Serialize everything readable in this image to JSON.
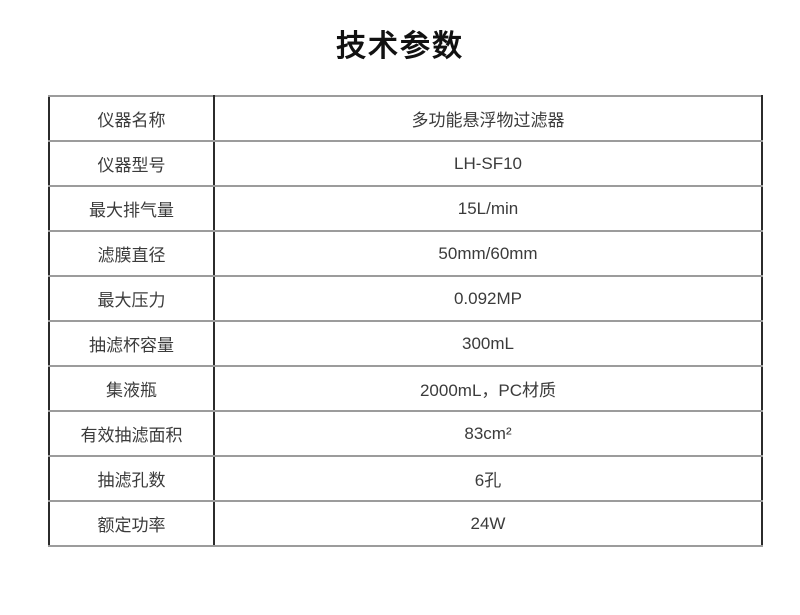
{
  "page": {
    "title": "技术参数"
  },
  "table": {
    "rows": [
      {
        "label": "仪器名称",
        "value": "多功能悬浮物过滤器"
      },
      {
        "label": "仪器型号",
        "value": "LH-SF10"
      },
      {
        "label": "最大排气量",
        "value": "15L/min"
      },
      {
        "label": "滤膜直径",
        "value": "50mm/60mm"
      },
      {
        "label": "最大压力",
        "value": "0.092MP"
      },
      {
        "label": "抽滤杯容量",
        "value": "300mL"
      },
      {
        "label": "集液瓶",
        "value": "2000mL，PC材质"
      },
      {
        "label": "有效抽滤面积",
        "value": "83cm²"
      },
      {
        "label": "抽滤孔数",
        "value": "6孔"
      },
      {
        "label": "额定功率",
        "value": "24W"
      }
    ]
  },
  "colors": {
    "horizontal_rule": "#9c9c9c",
    "vertical_rule": "#2b2b2b",
    "body_text": "#3b3b3b",
    "title_text": "#111111",
    "background": "#ffffff"
  }
}
